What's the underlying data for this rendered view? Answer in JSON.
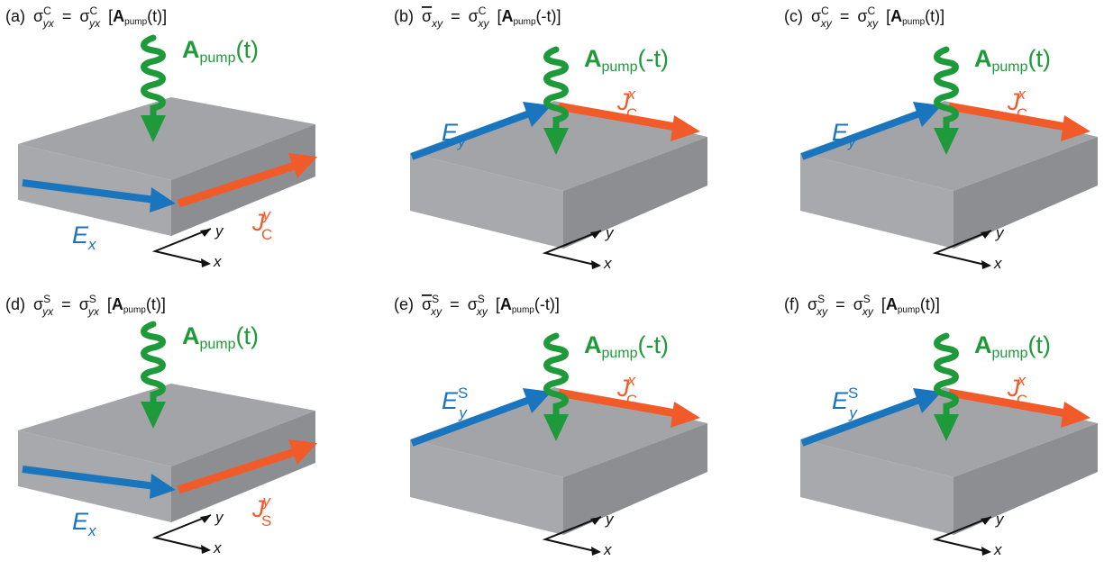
{
  "panels": [
    {
      "label": "(a)",
      "caption": {
        "lhs": "σ",
        "lhs_sup": "C",
        "lhs_sub": "yx",
        "eq": "=",
        "rhs": "σ",
        "rhs_sup": "C",
        "rhs_sub": "yx",
        "arg_open": "[",
        "A": "A",
        "pump": "pump",
        "arg": "(t)",
        "arg_close": "]"
      },
      "pump": {
        "A": "A",
        "sub": "pump",
        "arg": "(t)"
      },
      "field": {
        "E": "E",
        "sub": "x",
        "sup": ""
      },
      "current": {
        "J": "J",
        "sub": "C",
        "sup": "y"
      },
      "axes": {
        "y": "y",
        "x": "x"
      }
    },
    {
      "label": "(b)",
      "caption": {
        "lhs": "σ",
        "lhs_sup": "C",
        "lhs_sub": "xy",
        "eq": "=",
        "rhs": "σ",
        "rhs_sup": "C",
        "rhs_sub": "xy",
        "arg_open": "[",
        "A": "A",
        "pump": "pump",
        "arg": "(-t)",
        "arg_close": "]"
      },
      "pump": {
        "A": "A",
        "sub": "pump",
        "arg": "(-t)"
      },
      "field": {
        "E": "E",
        "sub": "y",
        "sup": ""
      },
      "current": {
        "J": "J",
        "sub": "C",
        "sup": "x"
      },
      "axes": {
        "y": "y",
        "x": "x"
      }
    },
    {
      "label": "(c)",
      "caption": {
        "lhs": "σ",
        "lhs_sup": "C",
        "lhs_sub": "xy",
        "eq": "=",
        "rhs": "σ",
        "rhs_sup": "C",
        "rhs_sub": "xy",
        "arg_open": "[",
        "A": "A",
        "pump": "pump",
        "arg": "(t)",
        "arg_close": "]"
      },
      "pump": {
        "A": "A",
        "sub": "pump",
        "arg": "(t)"
      },
      "field": {
        "E": "E",
        "sub": "y",
        "sup": ""
      },
      "current": {
        "J": "J",
        "sub": "C",
        "sup": "x"
      },
      "axes": {
        "y": "y",
        "x": "x"
      }
    },
    {
      "label": "(d)",
      "caption": {
        "lhs": "σ",
        "lhs_sup": "S",
        "lhs_sub": "yx",
        "eq": "=",
        "rhs": "σ",
        "rhs_sup": "S",
        "rhs_sub": "yx",
        "arg_open": "[",
        "A": "A",
        "pump": "pump",
        "arg": "(t)",
        "arg_close": "]"
      },
      "pump": {
        "A": "A",
        "sub": "pump",
        "arg": "(t)"
      },
      "field": {
        "E": "E",
        "sub": "x",
        "sup": ""
      },
      "current": {
        "J": "J",
        "sub": "S",
        "sup": "y"
      },
      "axes": {
        "y": "y",
        "x": "x"
      }
    },
    {
      "label": "(e)",
      "caption": {
        "lhs": "σ",
        "lhs_sup": "S",
        "lhs_sub": "xy",
        "eq": "=",
        "rhs": "σ",
        "rhs_sup": "S",
        "rhs_sub": "xy",
        "arg_open": "[",
        "A": "A",
        "pump": "pump",
        "arg": "(-t)",
        "arg_close": "]"
      },
      "pump": {
        "A": "A",
        "sub": "pump",
        "arg": "(-t)"
      },
      "field": {
        "E": "E",
        "sub": "y",
        "sup": "S"
      },
      "current": {
        "J": "J",
        "sub": "C",
        "sup": "x"
      },
      "axes": {
        "y": "y",
        "x": "x"
      }
    },
    {
      "label": "(f)",
      "caption": {
        "lhs": "σ",
        "lhs_sup": "S",
        "lhs_sub": "xy",
        "eq": "=",
        "rhs": "σ",
        "rhs_sup": "S",
        "rhs_sub": "xy",
        "arg_open": "[",
        "A": "A",
        "pump": "pump",
        "arg": "(t)",
        "arg_close": "]"
      },
      "pump": {
        "A": "A",
        "sub": "pump",
        "arg": "(t)"
      },
      "field": {
        "E": "E",
        "sub": "y",
        "sup": "S"
      },
      "current": {
        "J": "J",
        "sub": "C",
        "sup": "x"
      },
      "axes": {
        "y": "y",
        "x": "x"
      }
    }
  ],
  "colors": {
    "pump": "#1f9a3a",
    "field": "#1a75bf",
    "current": "#f15a29",
    "slab_top": "#a3a4a7",
    "slab_front": "#a9aaad",
    "slab_side": "#8c8d90",
    "axes": "#111111"
  }
}
